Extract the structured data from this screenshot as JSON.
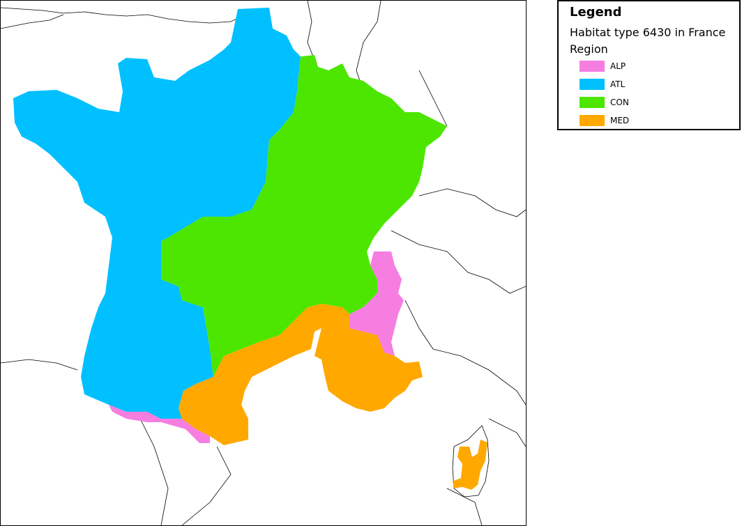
{
  "legend": {
    "title": "Legend",
    "subtitle": "Habitat type 6430 in France",
    "group_label": "Region",
    "items": [
      {
        "code": "ALP",
        "color": "#f57ee0"
      },
      {
        "code": "ATL",
        "color": "#00c0ff"
      },
      {
        "code": "CON",
        "color": "#4ce600"
      },
      {
        "code": "MED",
        "color": "#ffa800"
      }
    ]
  },
  "map": {
    "background": "#ffffff",
    "border_color": "#000000"
  }
}
